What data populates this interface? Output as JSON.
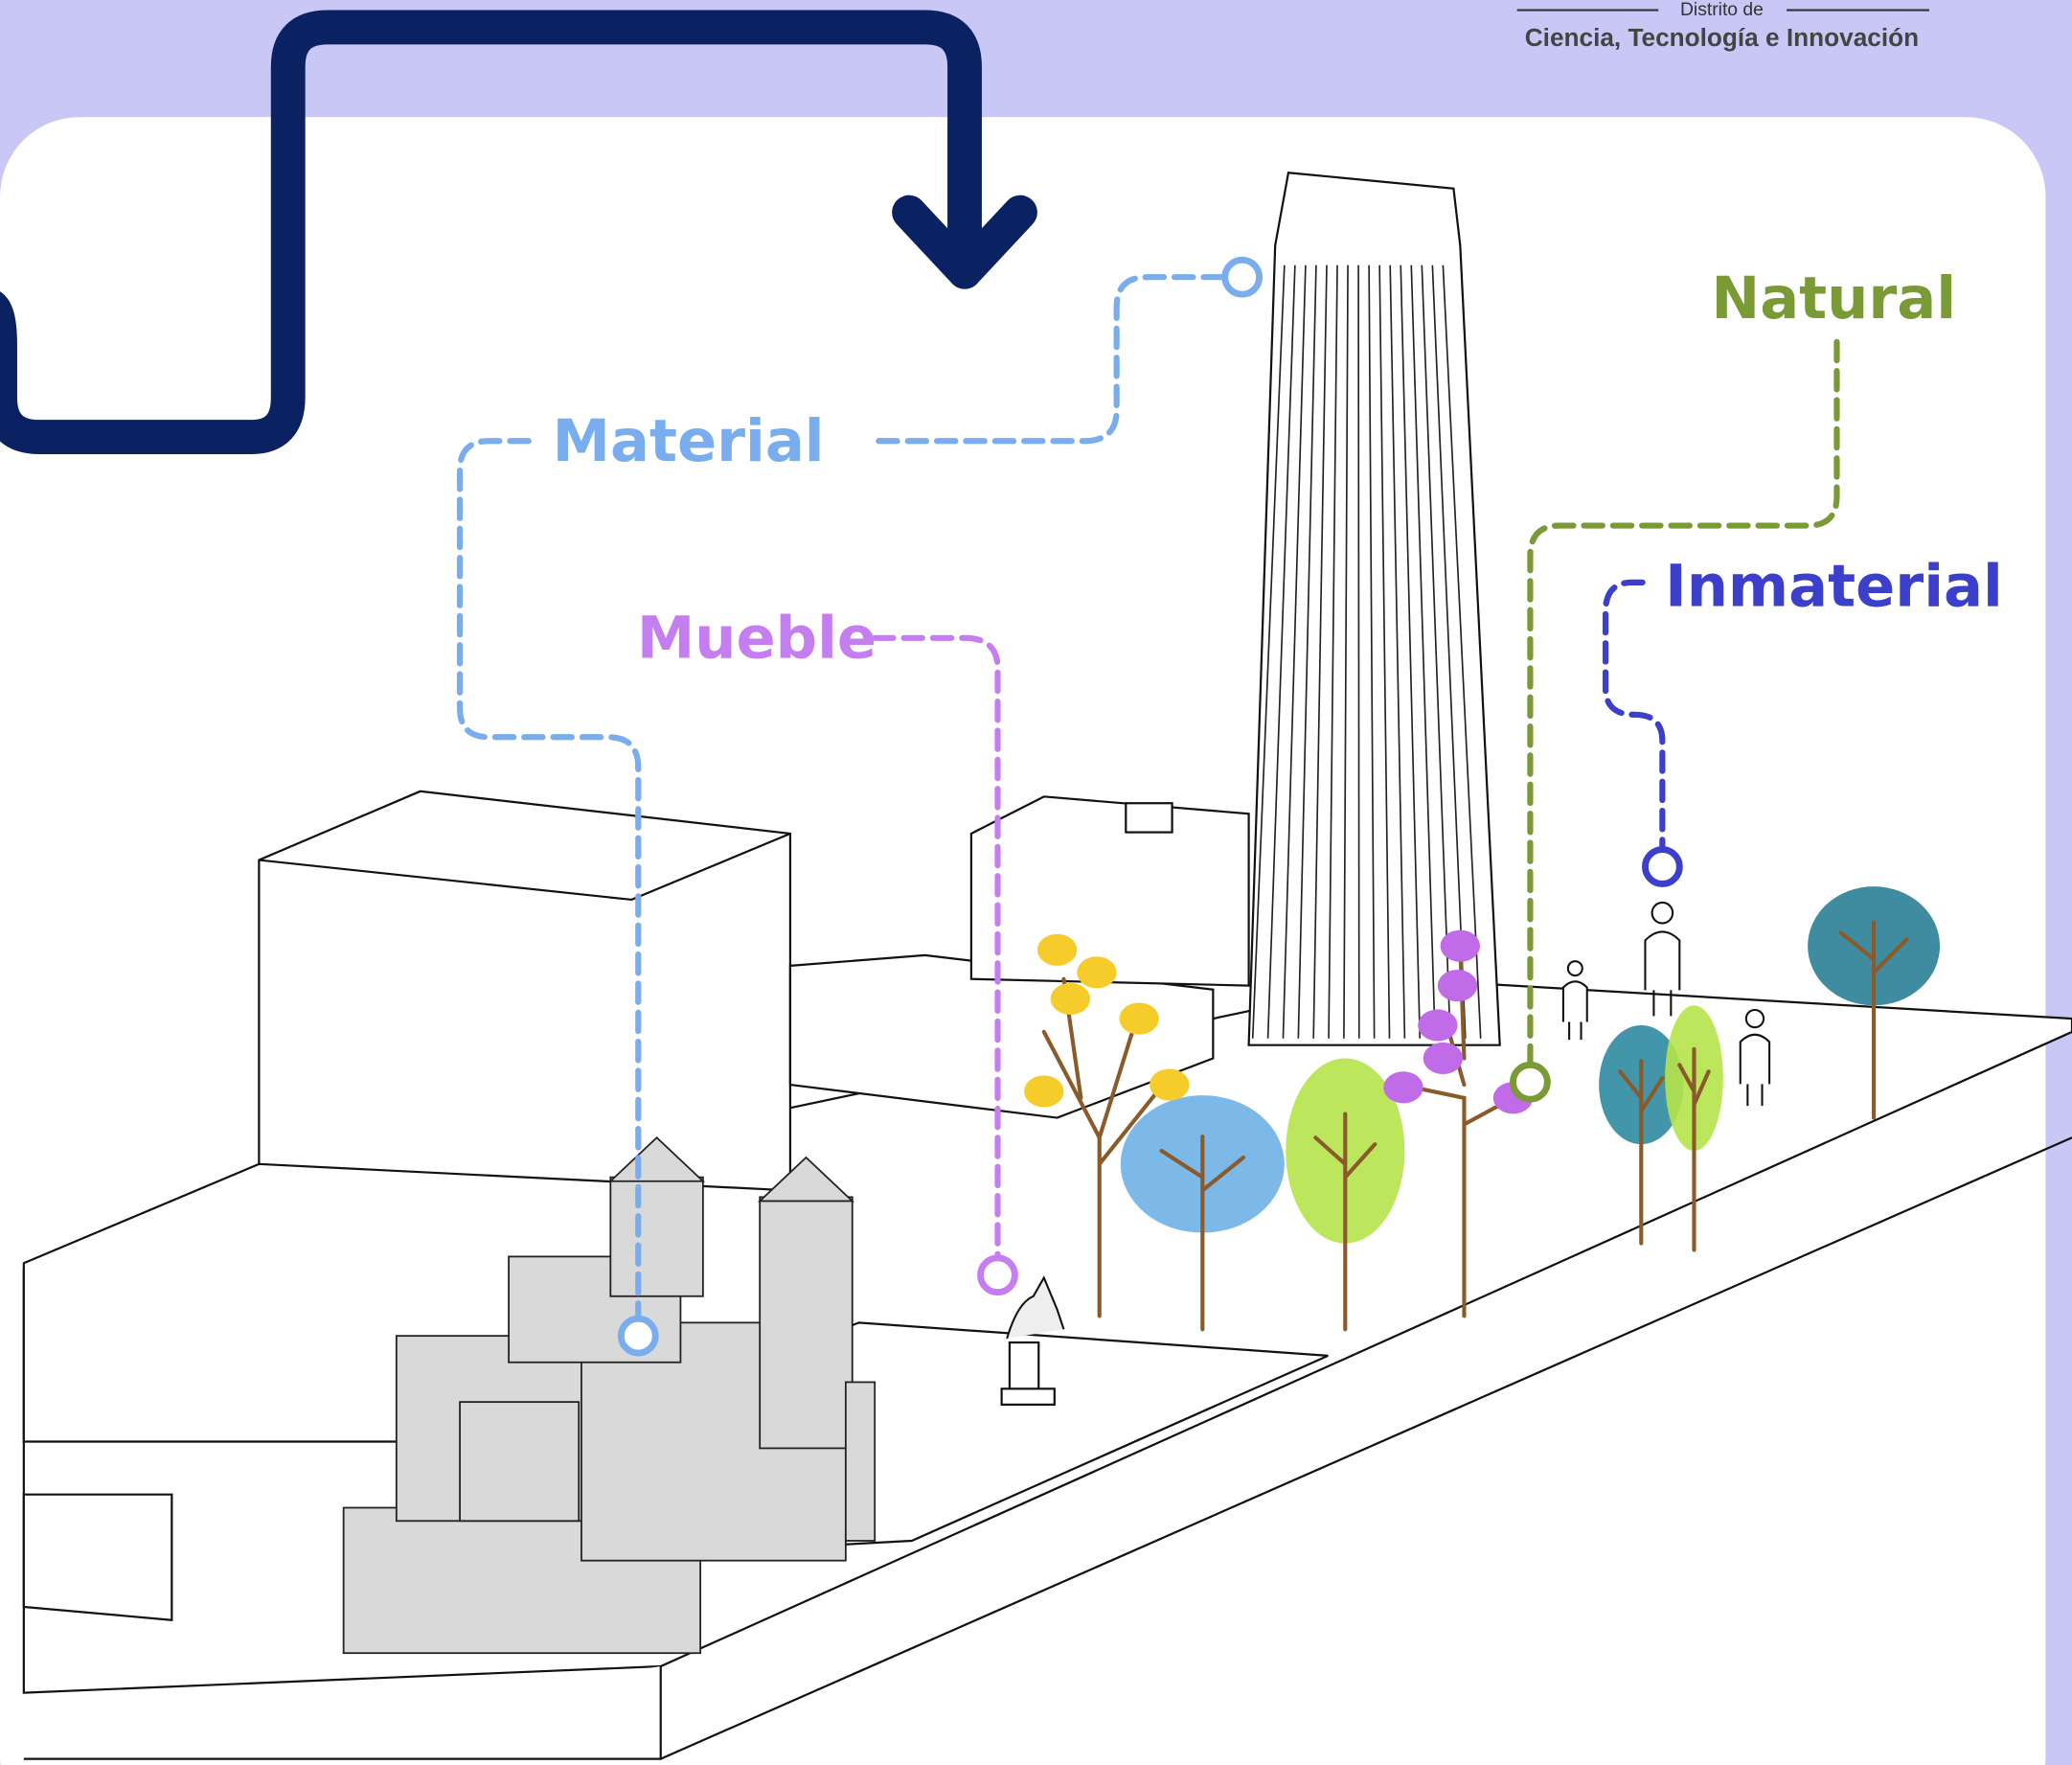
{
  "header": {
    "subtitle": "Distrito de",
    "title": "Ciencia, Tecnología e Innovación"
  },
  "labels": {
    "material": "Material",
    "mueble": "Mueble",
    "natural": "Natural",
    "inmaterial": "Inmaterial"
  }
}
